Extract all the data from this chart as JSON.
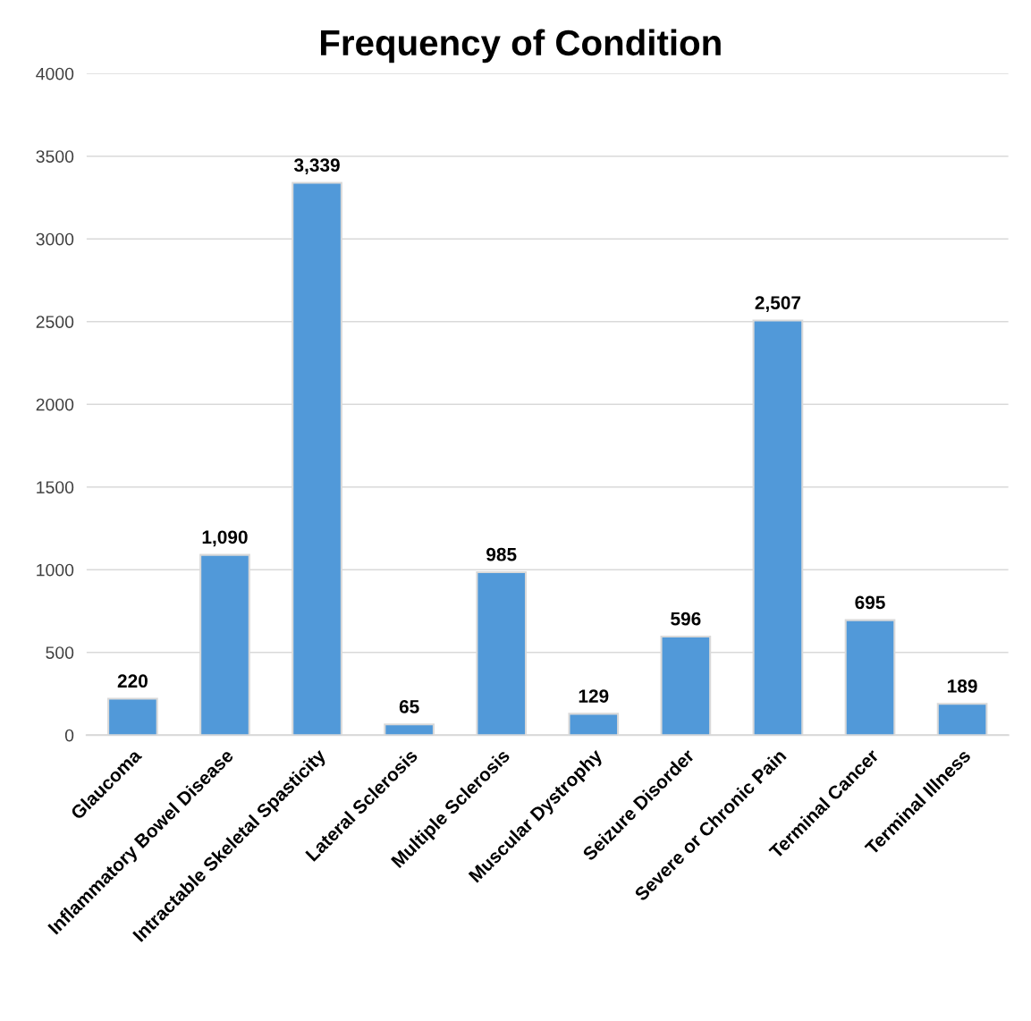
{
  "chart_data": {
    "type": "bar",
    "title": "Frequency of Condition",
    "categories": [
      "Glaucoma",
      "Inflammatory Bowel Disease",
      "Intractable Skeletal Spasticity",
      "Lateral Sclerosis",
      "Multiple Sclerosis",
      "Muscular Dystrophy",
      "Seizure Disorder",
      "Severe or Chronic Pain",
      "Terminal Cancer",
      "Terminal Illness"
    ],
    "values": [
      220,
      1090,
      3339,
      65,
      985,
      129,
      596,
      2507,
      695,
      189
    ],
    "value_labels": [
      "220",
      "1,090",
      "3,339",
      "65",
      "985",
      "129",
      "596",
      "2,507",
      "695",
      "189"
    ],
    "color": "#5199d9",
    "ylim": [
      0,
      4000
    ],
    "yticks": [
      0,
      500,
      1000,
      1500,
      2000,
      2500,
      3000,
      3500,
      4000
    ],
    "grid": "y"
  }
}
